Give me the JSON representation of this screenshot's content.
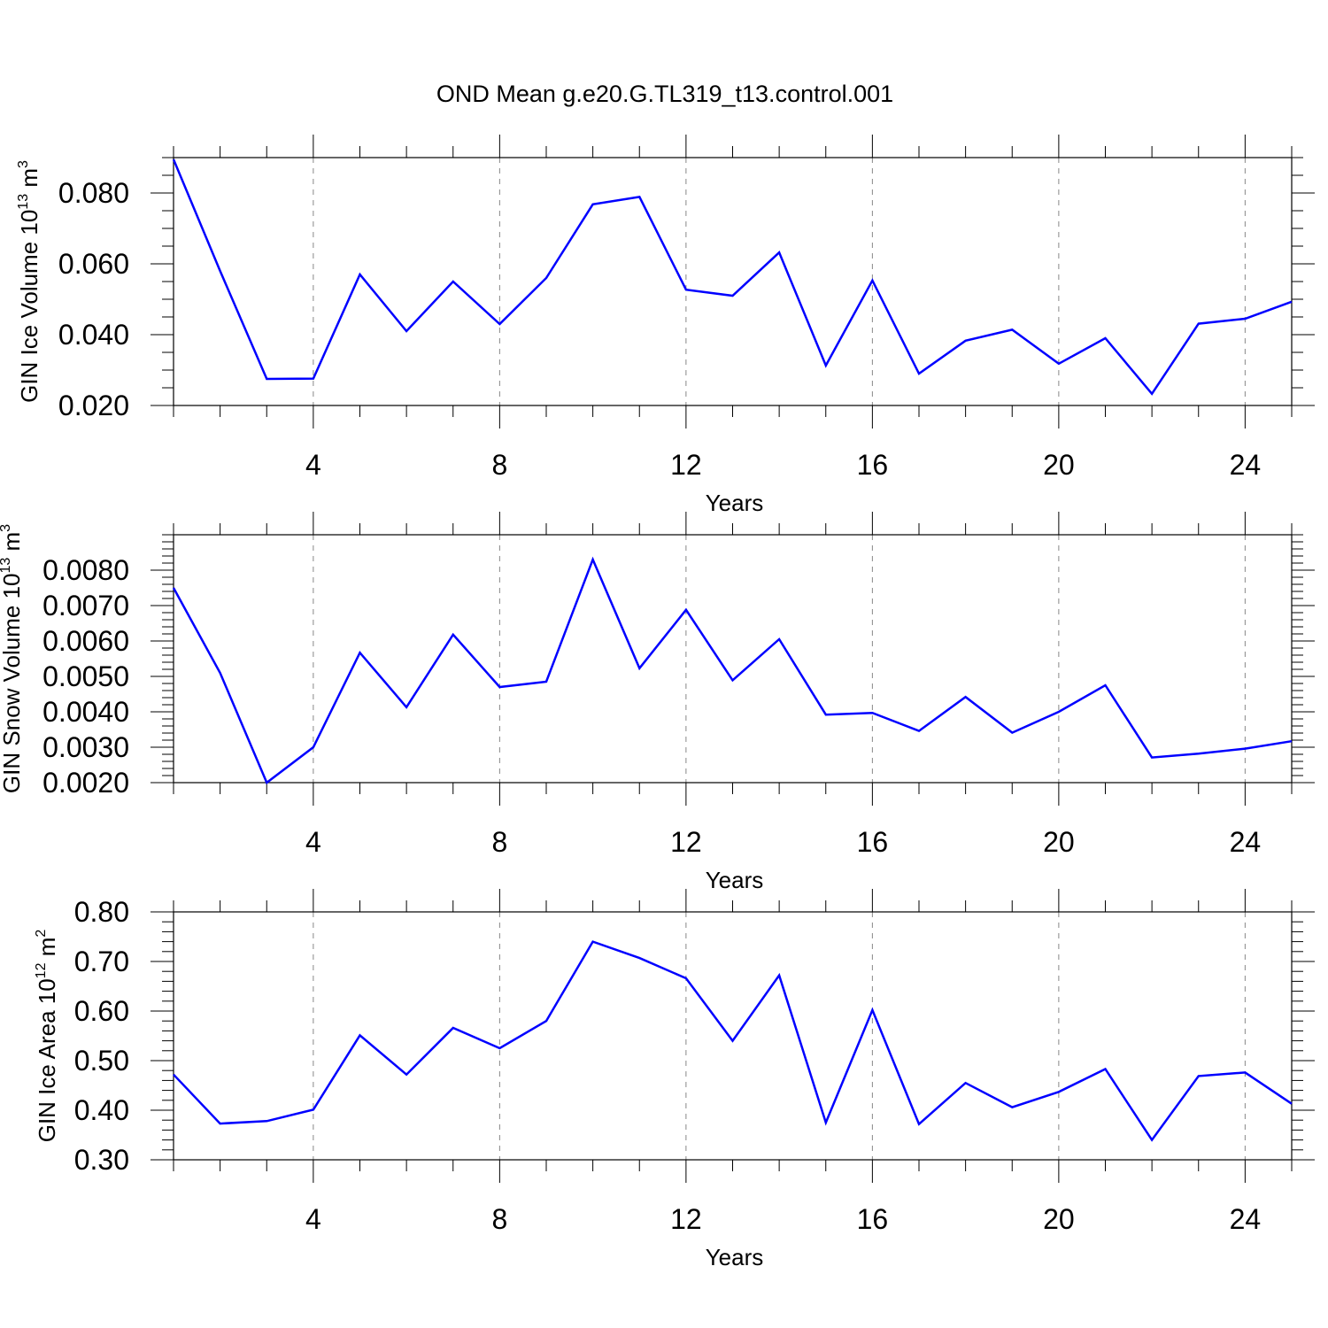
{
  "figure": {
    "title": "OND Mean g.e20.G.TL319_t13.control.001"
  },
  "colors": {
    "line": "#0000ff",
    "axis": "#000000",
    "grid": "#888888"
  },
  "chart_data": [
    {
      "type": "line",
      "ylabel": {
        "base": "GIN Ice Volume 10",
        "exp": "13",
        "unit": " m",
        "unit_exp": "3"
      },
      "xlabel": "Years",
      "xlim": [
        1,
        25
      ],
      "ylim": [
        0.02,
        0.09
      ],
      "xticks": [
        4,
        8,
        12,
        16,
        20,
        24
      ],
      "yticks": [
        0.02,
        0.04,
        0.06,
        0.08
      ],
      "ytick_labels": [
        "0.020",
        "0.040",
        "0.060",
        "0.080"
      ],
      "yminor_step": 0.005,
      "grid": "x-dashed",
      "x": [
        1,
        2,
        3,
        4,
        5,
        6,
        7,
        8,
        9,
        10,
        11,
        12,
        13,
        14,
        15,
        16,
        17,
        18,
        19,
        20,
        21,
        22,
        23,
        24,
        25
      ],
      "series": [
        {
          "values": [
            0.0895,
            0.058,
            0.0275,
            0.0276,
            0.057,
            0.041,
            0.055,
            0.043,
            0.056,
            0.0768,
            0.0789,
            0.0527,
            0.051,
            0.0632,
            0.0313,
            0.0553,
            0.029,
            0.0383,
            0.0414,
            0.0318,
            0.039,
            0.0233,
            0.0431,
            0.0445,
            0.0493
          ]
        }
      ]
    },
    {
      "type": "line",
      "ylabel": {
        "base": "GIN Snow Volume 10",
        "exp": "13",
        "unit": " m",
        "unit_exp": "3"
      },
      "xlabel": "Years",
      "xlim": [
        1,
        25
      ],
      "ylim": [
        0.002,
        0.009
      ],
      "xticks": [
        4,
        8,
        12,
        16,
        20,
        24
      ],
      "yticks": [
        0.002,
        0.003,
        0.004,
        0.005,
        0.006,
        0.007,
        0.008
      ],
      "ytick_labels": [
        "0.0020",
        "0.0030",
        "0.0040",
        "0.0050",
        "0.0060",
        "0.0070",
        "0.0080"
      ],
      "yminor_step": 0.0002,
      "grid": "x-dashed",
      "x": [
        1,
        2,
        3,
        4,
        5,
        6,
        7,
        8,
        9,
        10,
        11,
        12,
        13,
        14,
        15,
        16,
        17,
        18,
        19,
        20,
        21,
        22,
        23,
        24,
        25
      ],
      "series": [
        {
          "values": [
            0.0075,
            0.0051,
            0.002,
            0.003,
            0.00567,
            0.00413,
            0.00618,
            0.0047,
            0.00485,
            0.0083,
            0.00523,
            0.00688,
            0.00489,
            0.00605,
            0.00392,
            0.00397,
            0.00346,
            0.00442,
            0.00341,
            0.004,
            0.00475,
            0.00271,
            0.00282,
            0.00296,
            0.00317
          ]
        }
      ]
    },
    {
      "type": "line",
      "ylabel": {
        "base": "GIN Ice Area 10",
        "exp": "12",
        "unit": " m",
        "unit_exp": "2"
      },
      "xlabel": "Years",
      "xlim": [
        1,
        25
      ],
      "ylim": [
        0.3,
        0.8
      ],
      "xticks": [
        4,
        8,
        12,
        16,
        20,
        24
      ],
      "yticks": [
        0.3,
        0.4,
        0.5,
        0.6,
        0.7,
        0.8
      ],
      "ytick_labels": [
        "0.30",
        "0.40",
        "0.50",
        "0.60",
        "0.70",
        "0.80"
      ],
      "yminor_step": 0.02,
      "grid": "x-dashed",
      "x": [
        1,
        2,
        3,
        4,
        5,
        6,
        7,
        8,
        9,
        10,
        11,
        12,
        13,
        14,
        15,
        16,
        17,
        18,
        19,
        20,
        21,
        22,
        23,
        24,
        25
      ],
      "series": [
        {
          "values": [
            0.472,
            0.373,
            0.378,
            0.401,
            0.551,
            0.472,
            0.566,
            0.525,
            0.58,
            0.74,
            0.707,
            0.666,
            0.54,
            0.672,
            0.375,
            0.602,
            0.372,
            0.455,
            0.406,
            0.437,
            0.483,
            0.34,
            0.469,
            0.476,
            0.413
          ]
        }
      ]
    }
  ]
}
